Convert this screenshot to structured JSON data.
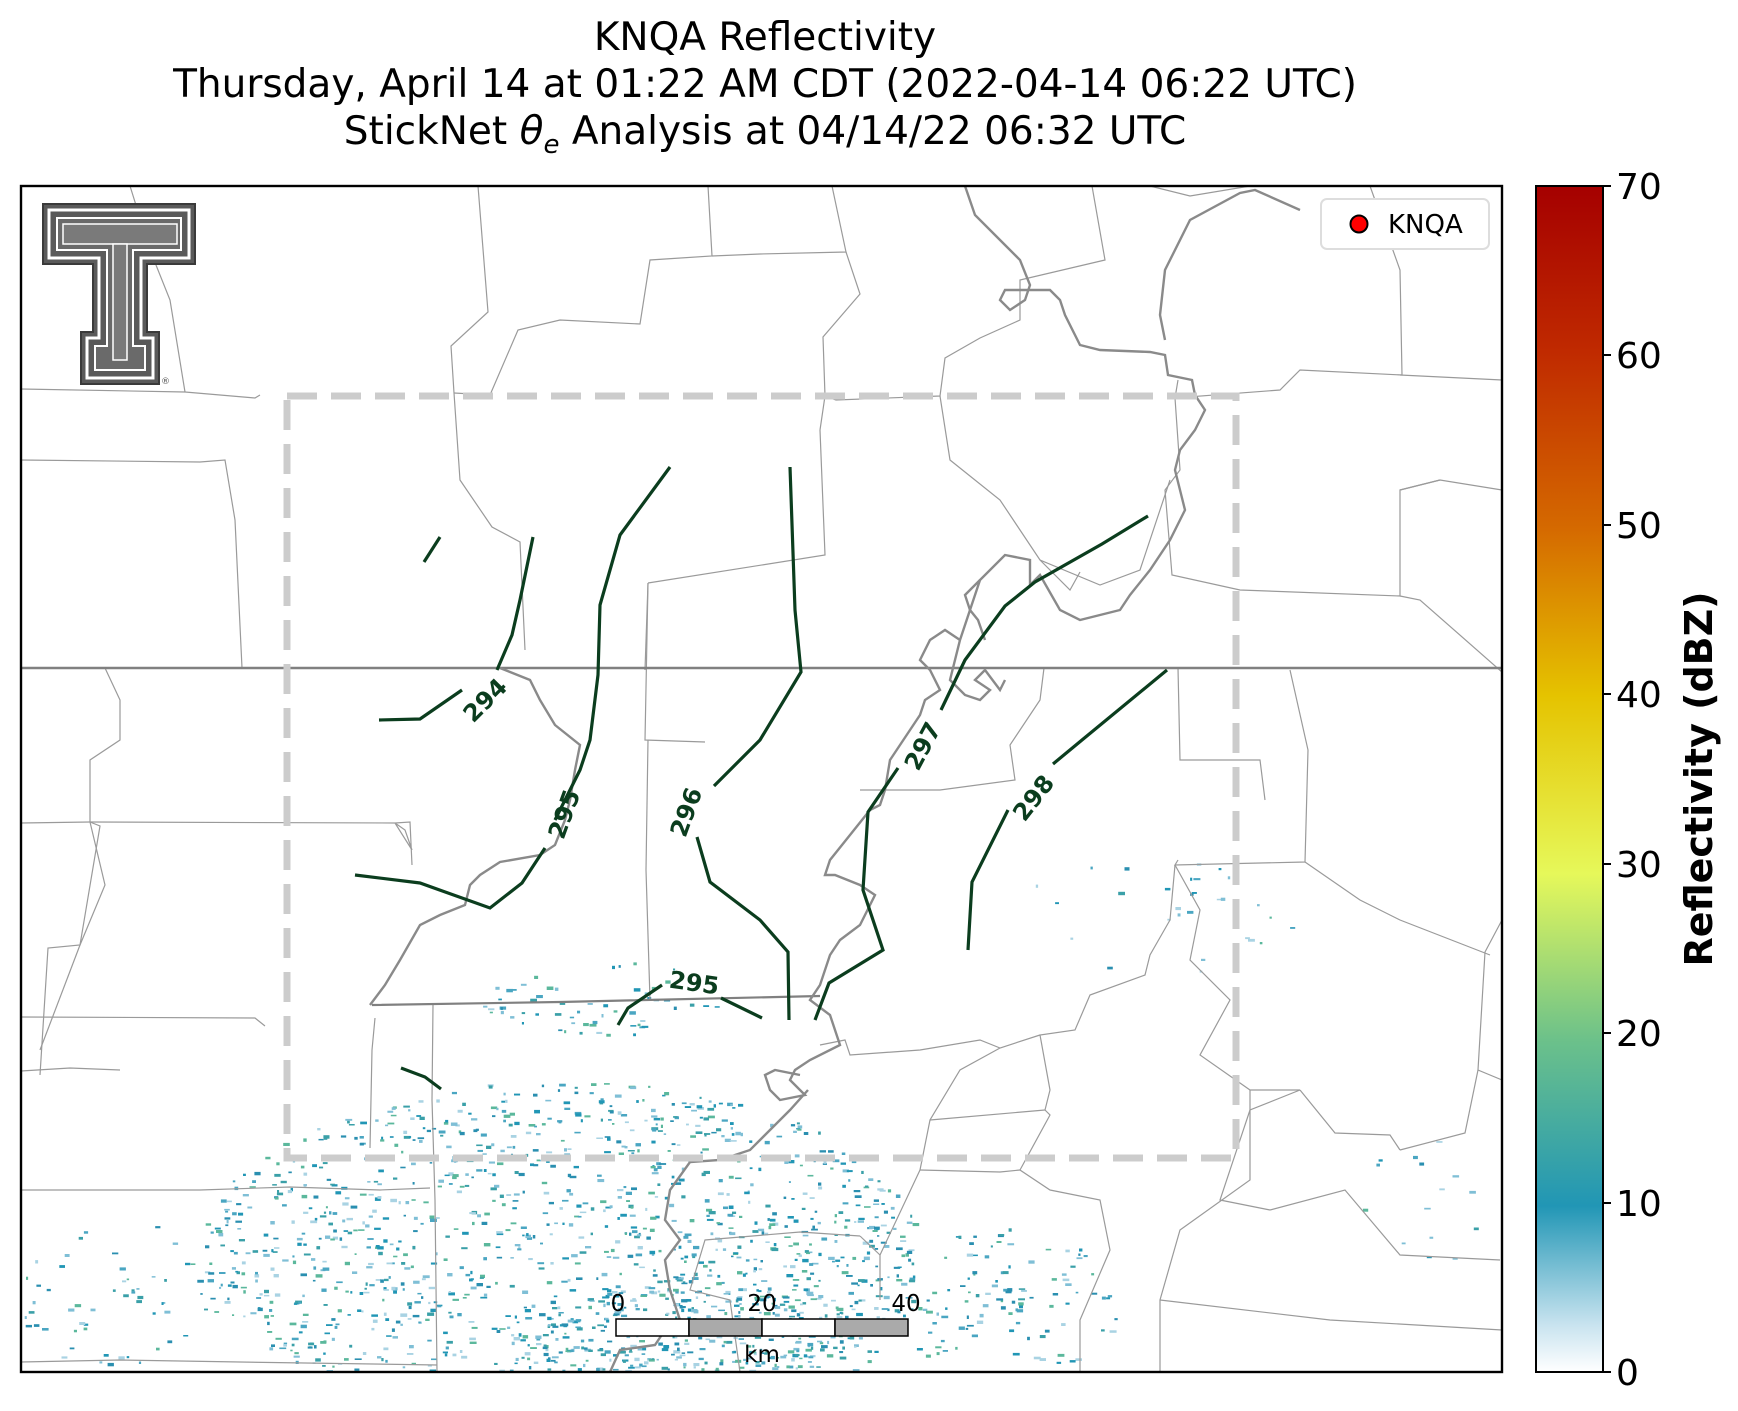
{
  "title": {
    "line1": "KNQA Reflectivity",
    "line2": "Thursday, April 14 at 01:22 AM CDT (2022-04-14 06:22 UTC)",
    "line3_pre": "StickNet ",
    "line3_symbol": "θ",
    "line3_sub": "e",
    "line3_post": " Analysis at 04/14/22 06:32 UTC"
  },
  "legend": {
    "label": "KNQA",
    "marker_color": "#ff0000"
  },
  "contour_labels": [
    "294",
    "295",
    "296",
    "295",
    "297",
    "298"
  ],
  "contour_color": "#0b3d1e",
  "scale_bar": {
    "ticks": [
      "0",
      "20",
      "40"
    ],
    "unit": "km"
  },
  "colorbar": {
    "label": "Reflectivity (dBZ)",
    "ticks": [
      "0",
      "10",
      "20",
      "30",
      "40",
      "50",
      "60",
      "70"
    ],
    "min": 0,
    "max": 70,
    "colors": [
      "#ffffff",
      "#2196b5",
      "#6cc18a",
      "#e6f85a",
      "#e5c300",
      "#d56a00",
      "#c02a00",
      "#a50000"
    ]
  },
  "logo": {
    "text": "TT",
    "registered": "®"
  },
  "analysis_box": {
    "style": "dashed",
    "color": "#cccccc"
  }
}
